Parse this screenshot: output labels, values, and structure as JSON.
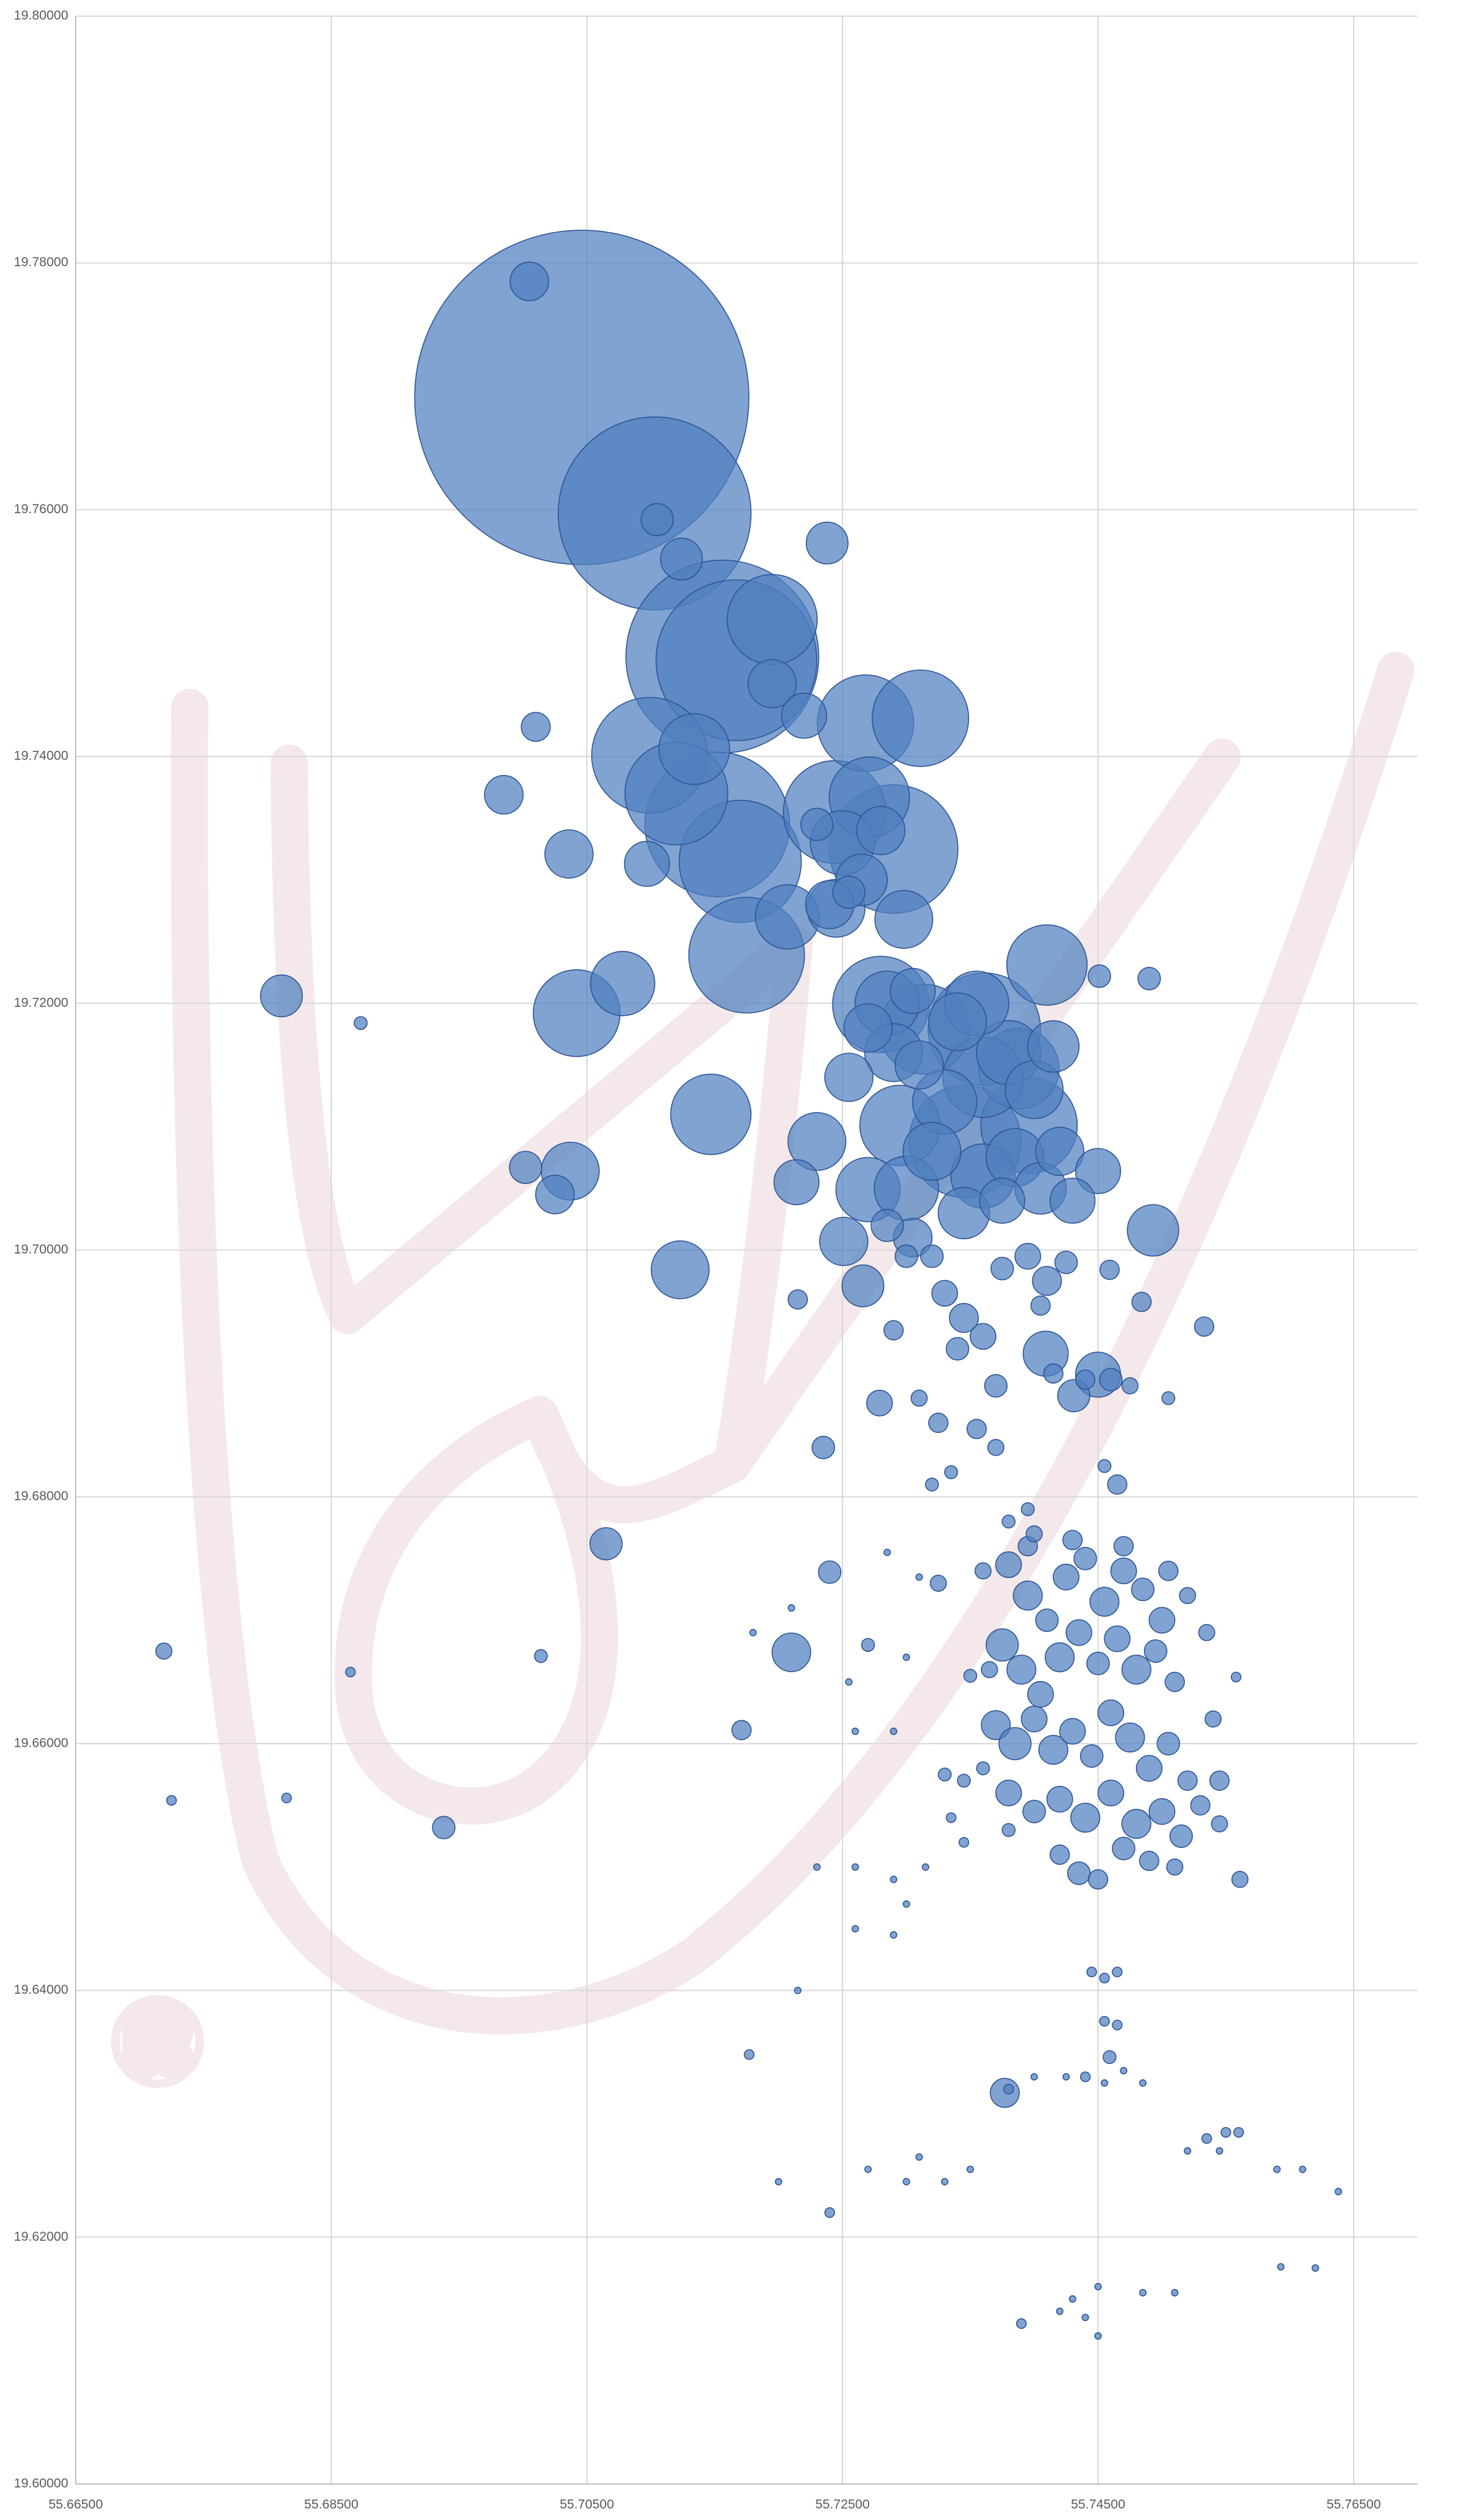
{
  "chart_data": {
    "type": "bubble",
    "xlim": [
      55.665,
      55.77
    ],
    "ylim": [
      19.6,
      19.8
    ],
    "xticks": [
      {
        "value": 55.665,
        "label": "55.66500"
      },
      {
        "value": 55.685,
        "label": "55.68500"
      },
      {
        "value": 55.705,
        "label": "55.70500"
      },
      {
        "value": 55.725,
        "label": "55.72500"
      },
      {
        "value": 55.745,
        "label": "55.74500"
      },
      {
        "value": 55.765,
        "label": "55.76500"
      }
    ],
    "yticks": [
      {
        "value": 19.6,
        "label": "19.60000"
      },
      {
        "value": 19.62,
        "label": "19.62000"
      },
      {
        "value": 19.64,
        "label": "19.64000"
      },
      {
        "value": 19.66,
        "label": "19.66000"
      },
      {
        "value": 19.68,
        "label": "19.68000"
      },
      {
        "value": 19.7,
        "label": "19.70000"
      },
      {
        "value": 19.72,
        "label": "19.72000"
      },
      {
        "value": 19.74,
        "label": "19.74000"
      },
      {
        "value": 19.76,
        "label": "19.76000"
      },
      {
        "value": 19.78,
        "label": "19.78000"
      },
      {
        "value": 19.8,
        "label": "19.80000"
      }
    ],
    "grid": true,
    "series": [
      {
        "color": "#4f7fbf",
        "x": [
          55.7046,
          55.7103,
          55.7156,
          55.7167,
          55.7152,
          55.729,
          55.717,
          55.7099,
          55.7175,
          55.7361,
          55.7346,
          55.712,
          55.7244,
          55.7268,
          55.7311,
          55.728,
          55.7396,
          55.7195,
          55.7314,
          55.7042,
          55.7271,
          55.741,
          55.7388,
          55.7295,
          55.7147,
          55.736,
          55.7134,
          55.7207,
          55.7078,
          55.727,
          55.73,
          55.736,
          55.733,
          55.738,
          55.7285,
          55.7355,
          55.725,
          55.7245,
          55.7298,
          55.723,
          55.7037,
          55.7123,
          55.732,
          55.7385,
          55.74,
          55.729,
          55.734,
          55.7493,
          55.7345,
          55.7405,
          55.7415,
          55.7265,
          55.7036,
          55.7195,
          55.7251,
          55.742,
          55.731,
          55.727,
          55.7255,
          55.728,
          55.724,
          55.7097,
          55.722,
          55.7214,
          55.745,
          55.7375,
          55.7305,
          55.743,
          55.745,
          55.7409,
          55.7124,
          55.7238,
          55.6811,
          55.7266,
          55.7005,
          55.6985,
          55.7025,
          55.721,
          55.7305,
          55.7105,
          55.7002,
          55.7065,
          55.7431,
          55.7285,
          55.723,
          55.7255,
          55.701,
          55.7377,
          55.6938,
          55.738,
          55.7395,
          55.741,
          55.7425,
          55.744,
          55.7455,
          55.747,
          55.7485,
          55.75,
          55.7375,
          55.739,
          55.7405,
          55.742,
          55.7435,
          55.745,
          55.7465,
          55.748,
          55.7495,
          55.751,
          55.737,
          55.7385,
          55.74,
          55.7415,
          55.743,
          55.7445,
          55.746,
          55.7475,
          55.749,
          55.7505,
          55.752,
          55.738,
          55.74,
          55.742,
          55.744,
          55.746,
          55.748,
          55.75,
          55.7515,
          55.753,
          55.742,
          55.7435,
          55.745,
          55.747,
          55.749,
          55.751,
          55.733,
          55.7345,
          55.736,
          55.7365,
          55.735,
          55.736,
          55.7395,
          55.743,
          55.747,
          55.7505,
          55.752,
          55.7535,
          55.754,
          55.7545,
          55.7545,
          55.733,
          55.7345,
          55.736,
          55.734,
          55.7375,
          55.7395,
          55.741,
          55.7425,
          55.7405,
          55.732,
          55.73,
          55.729,
          55.7325,
          55.7355,
          55.731,
          55.7335,
          55.732,
          55.737,
          55.7415,
          55.744,
          55.746,
          55.7475,
          55.7505,
          55.737,
          55.7455,
          55.7465,
          55.7395,
          55.738,
          55.7325,
          55.74,
          55.6719,
          55.6725,
          55.6873,
          55.6865,
          55.6815,
          55.7014,
          55.7171,
          55.7177,
          55.724,
          55.7235,
          55.7215,
          55.7279,
          55.7451,
          55.749,
          55.7459,
          55.7484,
          55.7558,
          55.7561,
          55.7638,
          55.724,
          55.739,
          55.7593,
          55.7459,
          55.7533,
          55.7445,
          55.7455,
          55.7465,
          55.7455,
          55.7465,
          55.738,
          55.74,
          55.7425,
          55.744,
          55.7455,
          55.747,
          55.7485,
          55.7535,
          55.755,
          55.7545,
          55.756,
          55.752,
          55.759,
          55.761,
          55.742,
          55.743,
          55.744,
          55.745,
          55.7485,
          55.751,
          55.745,
          55.762,
          55.727,
          55.73,
          55.733,
          55.735,
          55.731,
          55.72,
          55.7215,
          55.723,
          55.726,
          55.729,
          55.7315,
          55.7335,
          55.7345,
          55.738,
          55.73,
          55.726,
          55.729,
          55.718,
          55.721,
          55.7255,
          55.726,
          55.729,
          55.727,
          55.73,
          55.7285,
          55.731
        ],
        "values": [
          19.7691,
          19.7597,
          19.7481,
          19.7478,
          19.7345,
          19.7325,
          19.7315,
          19.7401,
          19.7239,
          19.7179,
          19.7088,
          19.737,
          19.7355,
          19.7427,
          19.7431,
          19.7199,
          19.7101,
          19.7511,
          19.7179,
          19.7192,
          19.7367,
          19.7231,
          19.7147,
          19.7101,
          19.711,
          19.714,
          19.7406,
          19.727,
          19.7216,
          19.7049,
          19.705,
          19.706,
          19.712,
          19.716,
          19.72,
          19.72,
          19.733,
          19.7277,
          19.7268,
          19.7088,
          19.7064,
          19.6984,
          19.708,
          19.7075,
          19.713,
          19.716,
          19.7185,
          19.7016,
          19.703,
          19.705,
          19.7165,
          19.73,
          19.7321,
          19.7459,
          19.7007,
          19.708,
          19.715,
          19.718,
          19.714,
          19.734,
          19.728,
          19.7313,
          19.7433,
          19.7055,
          19.7064,
          19.704,
          19.721,
          19.704,
          19.6899,
          19.6916,
          19.756,
          19.7573,
          19.7206,
          19.6971,
          19.7785,
          19.7369,
          19.7045,
          19.6674,
          19.701,
          19.7592,
          19.7067,
          19.6762,
          19.6882,
          19.702,
          19.7345,
          19.729,
          19.7424,
          19.6317,
          19.6532,
          19.6745,
          19.672,
          19.67,
          19.6735,
          19.675,
          19.6715,
          19.674,
          19.6725,
          19.67,
          19.668,
          19.666,
          19.664,
          19.667,
          19.669,
          19.6665,
          19.6685,
          19.666,
          19.6675,
          19.665,
          19.6615,
          19.66,
          19.662,
          19.6595,
          19.661,
          19.659,
          19.6625,
          19.6605,
          19.658,
          19.66,
          19.657,
          19.656,
          19.6545,
          19.6555,
          19.654,
          19.656,
          19.6535,
          19.6545,
          19.6525,
          19.655,
          19.651,
          19.6495,
          19.649,
          19.6515,
          19.6505,
          19.65,
          19.6575,
          19.657,
          19.658,
          19.666,
          19.6655,
          19.674,
          19.676,
          19.6765,
          19.676,
          19.674,
          19.672,
          19.669,
          19.662,
          19.657,
          19.6535,
          19.6965,
          19.6945,
          19.693,
          19.692,
          19.6985,
          19.6995,
          19.6975,
          19.699,
          19.6955,
          19.6995,
          19.6995,
          19.6935,
          19.686,
          19.6855,
          19.688,
          19.682,
          19.681,
          19.689,
          19.69,
          19.6895,
          19.6895,
          19.689,
          19.688,
          19.684,
          19.6825,
          19.681,
          19.679,
          19.678,
          19.673,
          19.677,
          19.6675,
          19.6554,
          19.7184,
          19.6658,
          19.6556,
          19.6671,
          19.6611,
          19.6348,
          19.6739,
          19.684,
          19.696,
          19.6876,
          19.7222,
          19.722,
          19.6984,
          19.6958,
          19.6654,
          19.649,
          19.6237,
          19.622,
          19.613,
          19.6176,
          19.6346,
          19.6938,
          19.6415,
          19.641,
          19.6415,
          19.6375,
          19.6372,
          19.632,
          19.633,
          19.633,
          19.633,
          19.6325,
          19.6335,
          19.6325,
          19.628,
          19.6285,
          19.627,
          19.6285,
          19.627,
          19.6255,
          19.6255,
          19.614,
          19.615,
          19.6135,
          19.616,
          19.6155,
          19.6155,
          19.612,
          19.6175,
          19.6255,
          19.6245,
          19.6245,
          19.6255,
          19.6265,
          19.6245,
          19.64,
          19.65,
          19.65,
          19.649,
          19.65,
          19.654,
          19.652,
          19.653,
          19.647,
          19.645,
          19.6445,
          19.669,
          19.671,
          19.665,
          19.661,
          19.661,
          19.668,
          19.667,
          19.6755,
          19.6735
        ],
        "sizes": [
          10816,
          3600,
          3600,
          2500,
          2025,
          1600,
          1444,
          1296,
          1296,
          1225,
          1225,
          1024,
          1024,
          900,
          900,
          900,
          900,
          784,
          784,
          729,
          625,
          625,
          625,
          625,
          625,
          625,
          484,
          400,
          400,
          400,
          400,
          400,
          400,
          400,
          400,
          400,
          400,
          324,
          324,
          324,
          324,
          324,
          324,
          324,
          324,
          324,
          324,
          256,
          256,
          256,
          256,
          256,
          225,
          225,
          225,
          225,
          225,
          225,
          225,
          225,
          225,
          196,
          196,
          196,
          196,
          196,
          196,
          196,
          196,
          196,
          169,
          169,
          169,
          169,
          144,
          144,
          144,
          144,
          144,
          100,
          100,
          100,
          100,
          100,
          100,
          100,
          81,
          81,
          49,
          64,
          81,
          49,
          64,
          49,
          81,
          64,
          49,
          64,
          100,
          81,
          64,
          81,
          64,
          49,
          64,
          81,
          49,
          36,
          81,
          100,
          64,
          81,
          64,
          49,
          64,
          81,
          64,
          49,
          36,
          64,
          49,
          64,
          81,
          64,
          81,
          64,
          49,
          36,
          36,
          49,
          36,
          49,
          36,
          25,
          16,
          16,
          16,
          25,
          16,
          25,
          36,
          36,
          36,
          36,
          25,
          25,
          25,
          36,
          25,
          64,
          81,
          64,
          49,
          49,
          64,
          81,
          49,
          36,
          49,
          49,
          36,
          36,
          36,
          25,
          16,
          16,
          49,
          36,
          36,
          49,
          25,
          16,
          25,
          16,
          36,
          16,
          16,
          25,
          25,
          25,
          9,
          16,
          9,
          9,
          16,
          36,
          9,
          49,
          49,
          36,
          64,
          49,
          49,
          36,
          36,
          9,
          25,
          4,
          9,
          9,
          4,
          16,
          36,
          9,
          9,
          9,
          9,
          9,
          9,
          4,
          4,
          9,
          4,
          4,
          4,
          9,
          9,
          4,
          9,
          4,
          4,
          4,
          4,
          4,
          4,
          4,
          4,
          4,
          4,
          4,
          4,
          4,
          4,
          4,
          4,
          4,
          4,
          4,
          4,
          4,
          4,
          9,
          9,
          16,
          4,
          4,
          4,
          4,
          4,
          4,
          4,
          4,
          16,
          4,
          4,
          4
        ]
      }
    ]
  }
}
